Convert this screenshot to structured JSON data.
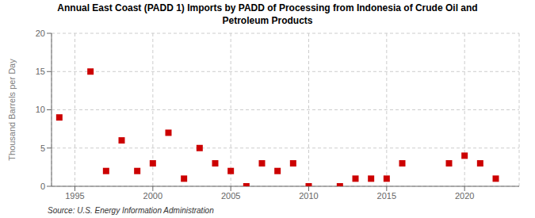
{
  "chart_data": {
    "type": "scatter",
    "title": "Annual East Coast (PADD 1) Imports by PADD of Processing from Indonesia of Crude Oil and\nPetroleum Products",
    "y_label": "Thousand Barrels per Day",
    "annotations": [
      "Source: U.S. Energy Information Administration"
    ],
    "x": [
      1994,
      1996,
      1997,
      1998,
      1999,
      2000,
      2001,
      2002,
      2003,
      2004,
      2005,
      2006,
      2007,
      2008,
      2009,
      2010,
      2012,
      2013,
      2014,
      2015,
      2016,
      2019,
      2020,
      2021,
      2022
    ],
    "values": [
      9,
      15,
      2,
      6,
      2,
      3,
      7,
      1,
      5,
      3,
      2,
      0,
      3,
      2,
      3,
      0,
      0,
      1,
      1,
      1,
      3,
      3,
      4,
      3,
      1
    ],
    "color": "#cc0000",
    "marker": "square",
    "xlim": [
      1993.5,
      2023.5
    ],
    "ylim": [
      0,
      20
    ],
    "xticks": [
      1995,
      2000,
      2005,
      2010,
      2015,
      2020
    ],
    "yticks": [
      0,
      5,
      10,
      15,
      20
    ],
    "grid": true
  }
}
